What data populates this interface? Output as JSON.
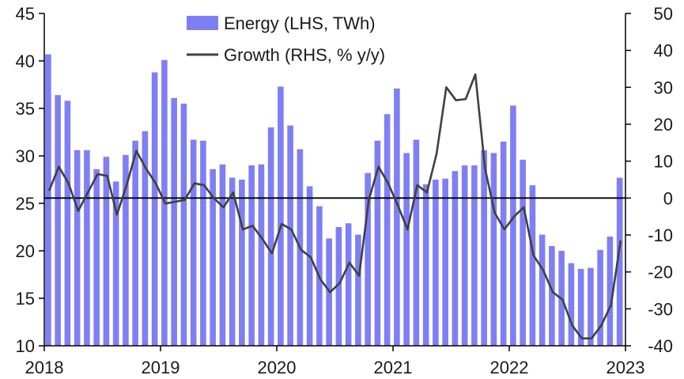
{
  "chart_data": {
    "type": "bar+line",
    "title": "",
    "x_labels": [
      "2018",
      "2019",
      "2020",
      "2021",
      "2022",
      "2023"
    ],
    "left_axis": {
      "label": "Energy (LHS, TWh)",
      "min": 10,
      "max": 45,
      "ticks": [
        10,
        15,
        20,
        25,
        30,
        35,
        40,
        45
      ]
    },
    "right_axis": {
      "label": "Growth (RHS, % y/y)",
      "min": -40,
      "max": 50,
      "ticks": [
        -40,
        -30,
        -20,
        -10,
        0,
        10,
        20,
        30,
        40,
        50
      ]
    },
    "start_period": "2018-01",
    "series": [
      {
        "name": "Energy (LHS, TWh)",
        "type": "bar",
        "axis": "left",
        "color": "#7f7ff5",
        "values": [
          40.7,
          36.4,
          35.8,
          30.6,
          30.6,
          28.6,
          29.9,
          27.3,
          30.1,
          31.6,
          32.6,
          38.8,
          40.1,
          36.1,
          35.5,
          31.7,
          31.6,
          28.6,
          29.1,
          27.7,
          27.5,
          29.0,
          29.1,
          33.0,
          37.3,
          33.2,
          30.7,
          26.8,
          24.7,
          21.3,
          22.5,
          22.9,
          21.7,
          28.2,
          31.6,
          34.4,
          37.1,
          30.3,
          31.7,
          27.0,
          27.5,
          27.6,
          28.4,
          29.0,
          29.0,
          30.6,
          30.3,
          31.5,
          35.3,
          29.6,
          26.9,
          21.7,
          20.5,
          20.0,
          18.7,
          18.1,
          18.2,
          20.1,
          21.5,
          27.7
        ]
      },
      {
        "name": "Growth (RHS, % y/y)",
        "type": "line",
        "axis": "right",
        "color": "#404040",
        "values": [
          2.0,
          8.5,
          4.0,
          -3.5,
          1.5,
          6.5,
          6.0,
          -4.5,
          3.5,
          12.8,
          8.0,
          4.0,
          -1.5,
          -1.0,
          -0.5,
          4.0,
          3.5,
          0.0,
          -2.5,
          1.5,
          -8.5,
          -7.5,
          -11.0,
          -15.0,
          -7.0,
          -8.5,
          -14.0,
          -16.0,
          -22.0,
          -25.5,
          -23.0,
          -17.5,
          -21.0,
          -0.5,
          8.5,
          4.0,
          -2.0,
          -8.5,
          3.5,
          1.5,
          12.0,
          30.0,
          26.5,
          26.8,
          33.5,
          8.0,
          -4.0,
          -8.5,
          -5.0,
          -2.5,
          -15.5,
          -19.5,
          -25.5,
          -27.5,
          -34.5,
          -38.0,
          -38.0,
          -34.5,
          -29.0,
          -11.5
        ]
      }
    ],
    "reference_line": {
      "axis": "right",
      "value": 0
    },
    "legend_position": "top-center"
  }
}
